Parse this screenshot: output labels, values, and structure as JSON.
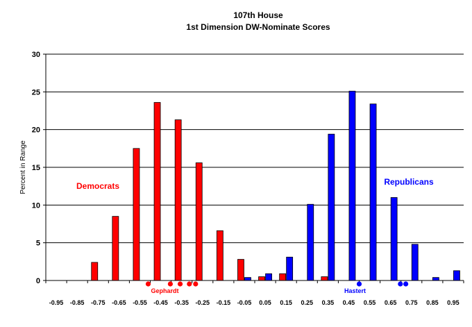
{
  "chart_data": {
    "type": "bar",
    "title": "107th House",
    "subtitle": "1st Dimension DW-Nominate Scores",
    "xlabel": "",
    "ylabel": "Percent in Range",
    "ylim": [
      0,
      30
    ],
    "yticks": [
      0,
      5,
      10,
      15,
      20,
      25,
      30
    ],
    "grid": true,
    "categories": [
      "-0.95",
      "-0.85",
      "-0.75",
      "-0.65",
      "-0.55",
      "-0.45",
      "-0.35",
      "-0.25",
      "-0.15",
      "-0.05",
      "0.05",
      "0.15",
      "0.25",
      "0.35",
      "0.45",
      "0.55",
      "0.65",
      "0.75",
      "0.85",
      "0.95"
    ],
    "series": [
      {
        "name": "Democrats",
        "color": "#ff0000",
        "values": [
          0,
          0,
          2.4,
          8.5,
          17.5,
          23.6,
          21.3,
          15.6,
          6.6,
          2.8,
          0.5,
          0.9,
          0,
          0.5,
          0,
          0,
          0,
          0,
          0,
          0
        ]
      },
      {
        "name": "Republicans",
        "color": "#0000ff",
        "values": [
          0,
          0,
          0,
          0,
          0,
          0,
          0,
          0,
          0,
          0.4,
          0.9,
          3.1,
          10.1,
          19.4,
          25.1,
          23.4,
          11.0,
          4.8,
          0.4,
          1.3
        ]
      }
    ],
    "series_labels": [
      {
        "text": "Democrats",
        "color": "#ff0000"
      },
      {
        "text": "Republicans",
        "color": "#0000ff"
      }
    ],
    "markers": [
      {
        "party": "dem",
        "x": -0.51,
        "color": "#ff0000"
      },
      {
        "party": "dem",
        "x": -0.404,
        "color": "#ff0000"
      },
      {
        "party": "dem",
        "x": -0.357,
        "color": "#ff0000"
      },
      {
        "party": "dem",
        "x": -0.313,
        "color": "#ff0000"
      },
      {
        "party": "dem",
        "x": -0.283,
        "color": "#ff0000"
      },
      {
        "party": "rep",
        "x": 0.5,
        "color": "#0000ff"
      },
      {
        "party": "rep",
        "x": 0.697,
        "color": "#0000ff"
      },
      {
        "party": "rep",
        "x": 0.723,
        "color": "#0000ff"
      }
    ],
    "annotations": [
      {
        "text": "Gephardt",
        "color": "#ff0000",
        "x": -0.43
      },
      {
        "text": "Hastert",
        "color": "#0000ff",
        "x": 0.48
      }
    ]
  }
}
